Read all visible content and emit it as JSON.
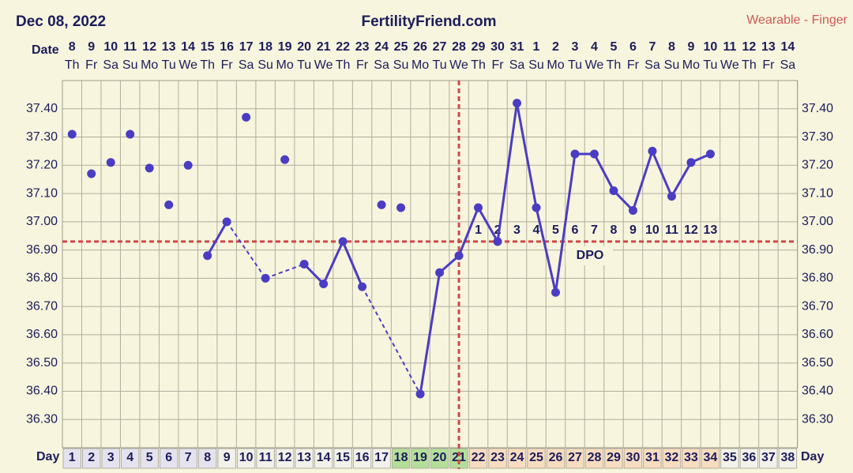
{
  "chart_data": {
    "type": "line",
    "title": "FertilityFriend.com",
    "date": "Dec 08, 2022",
    "source": "Wearable - Finger",
    "date_label": "Date",
    "day_label": "Day",
    "dpo_title": "DPO",
    "dates": [
      8,
      9,
      10,
      11,
      12,
      13,
      14,
      15,
      16,
      17,
      18,
      19,
      20,
      21,
      22,
      23,
      24,
      25,
      26,
      27,
      28,
      29,
      30,
      31,
      1,
      2,
      3,
      4,
      5,
      6,
      7,
      8,
      9,
      10,
      11,
      12,
      13,
      14
    ],
    "weekdays": [
      "Th",
      "Fr",
      "Sa",
      "Su",
      "Mo",
      "Tu",
      "We",
      "Th",
      "Fr",
      "Sa",
      "Su",
      "Mo",
      "Tu",
      "We",
      "Th",
      "Fr",
      "Sa",
      "Su",
      "Mo",
      "Tu",
      "We",
      "Th",
      "Fr",
      "Sa",
      "Su",
      "Mo",
      "Tu",
      "We",
      "Th",
      "Fr",
      "Sa",
      "Su",
      "Mo",
      "Tu",
      "We",
      "Th",
      "Fr",
      "Sa"
    ],
    "days": [
      1,
      2,
      3,
      4,
      5,
      6,
      7,
      8,
      9,
      10,
      11,
      12,
      13,
      14,
      15,
      16,
      17,
      18,
      19,
      20,
      21,
      22,
      23,
      24,
      25,
      26,
      27,
      28,
      29,
      30,
      31,
      32,
      33,
      34,
      35,
      36,
      37,
      38
    ],
    "day_fills": [
      "#e4e2ee",
      "#e4e2ee",
      "#e4e2ee",
      "#e4e2ee",
      "#e4e2ee",
      "#e4e2ee",
      "#e4e2ee",
      "#e4e2ee",
      "#f2f1ea",
      "#f2f1ea",
      "#f2f1ea",
      "#f2f1ea",
      "#f2f1ea",
      "#f2f1ea",
      "#f2f1ea",
      "#f2f1ea",
      "#f2f1ea",
      "#b4df98",
      "#b4df98",
      "#b4df98",
      "#b4df98",
      "#f8dcc0",
      "#f8dcc0",
      "#f8dcc0",
      "#f8dcc0",
      "#f8dcc0",
      "#f8dcc0",
      "#f8dcc0",
      "#f8dcc0",
      "#f8dcc0",
      "#f8dcc0",
      "#f8dcc0",
      "#f8dcc0",
      "#f8dcc0",
      "#f2f1ea",
      "#f2f1ea",
      "#f2f1ea",
      "#f2f1ea"
    ],
    "dpo_labels": [
      null,
      null,
      null,
      null,
      null,
      null,
      null,
      null,
      null,
      null,
      null,
      null,
      null,
      null,
      null,
      null,
      null,
      null,
      null,
      null,
      null,
      1,
      2,
      3,
      4,
      5,
      6,
      7,
      8,
      9,
      10,
      11,
      12,
      13,
      null,
      null,
      null,
      null
    ],
    "series": [
      {
        "name": "charted",
        "color": "#4a3dc4",
        "values": [
          null,
          null,
          null,
          null,
          null,
          null,
          null,
          36.88,
          37.0,
          null,
          36.8,
          null,
          36.85,
          36.78,
          36.93,
          36.77,
          null,
          null,
          36.39,
          36.82,
          36.88,
          37.05,
          36.93,
          37.42,
          37.05,
          36.75,
          37.24,
          37.24,
          37.11,
          37.04,
          37.25,
          37.09,
          37.21,
          37.24,
          null,
          null,
          null,
          null
        ]
      },
      {
        "name": "discarded",
        "color": "#4a3dc4",
        "values": [
          37.31,
          37.17,
          37.21,
          37.31,
          37.19,
          37.06,
          37.2,
          null,
          null,
          37.37,
          null,
          37.22,
          null,
          null,
          null,
          null,
          37.06,
          37.05,
          null,
          null,
          null,
          null,
          null,
          null,
          null,
          null,
          null,
          null,
          null,
          null,
          null,
          null,
          null,
          null,
          null,
          null,
          null,
          null
        ]
      }
    ],
    "coverline": 36.93,
    "ovulation_day": 21,
    "line_color": "#d04848",
    "ylim": [
      36.2,
      37.5
    ],
    "yticks": [
      {
        "value": 36.3,
        "label": "36.30"
      },
      {
        "value": 36.4,
        "label": "36.40"
      },
      {
        "value": 36.5,
        "label": "36.50"
      },
      {
        "value": 36.6,
        "label": "36.60"
      },
      {
        "value": 36.7,
        "label": "36.70"
      },
      {
        "value": 36.8,
        "label": "36.80"
      },
      {
        "value": 36.9,
        "label": "36.90"
      },
      {
        "value": 37.0,
        "label": "37.00"
      },
      {
        "value": 37.1,
        "label": "37.10"
      },
      {
        "value": 37.2,
        "label": "37.20"
      },
      {
        "value": 37.3,
        "label": "37.30"
      },
      {
        "value": 37.4,
        "label": "37.40"
      }
    ],
    "grid": true
  }
}
